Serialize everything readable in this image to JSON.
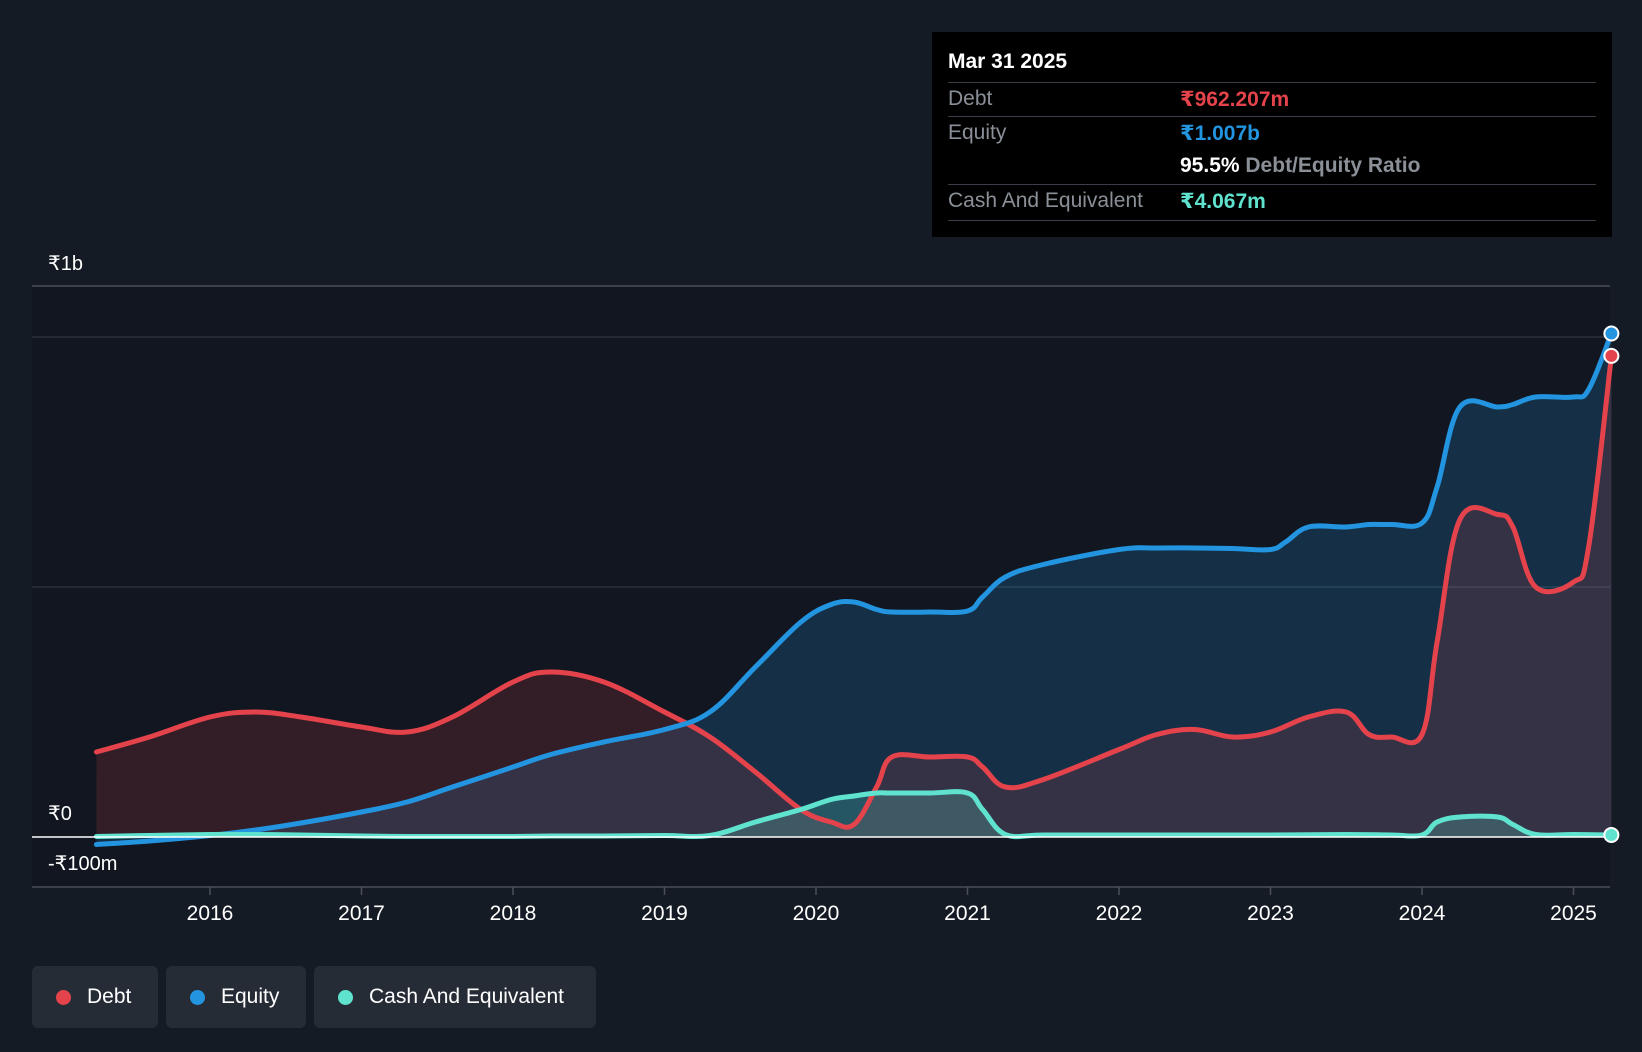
{
  "tooltip": {
    "date": "Mar 31 2025",
    "debt_label": "Debt",
    "debt_value": "₹962.207m",
    "equity_label": "Equity",
    "equity_value": "₹1.007b",
    "ratio_value": "95.5%",
    "ratio_label": "Debt/Equity Ratio",
    "cash_label": "Cash And Equivalent",
    "cash_value": "₹4.067m"
  },
  "legend": [
    {
      "label": "Debt",
      "color": "#e5434b"
    },
    {
      "label": "Equity",
      "color": "#2394df"
    },
    {
      "label": "Cash And Equivalent",
      "color": "#5fe3cf"
    }
  ],
  "chart_data": {
    "type": "area",
    "title": "",
    "xlabel": "",
    "ylabel": "",
    "y_top_label": "₹1b",
    "y_zero_label": "₹0",
    "y_bottom_label": "-₹100m",
    "ylim": [
      -100,
      1100
    ],
    "x_ticks": [
      "2016",
      "2017",
      "2018",
      "2019",
      "2020",
      "2021",
      "2022",
      "2023",
      "2024",
      "2025"
    ],
    "colors": {
      "debt": "#e5434b",
      "equity": "#2394df",
      "cash": "#5fe3cf"
    },
    "series": [
      {
        "name": "Debt",
        "key": "debt",
        "x": [
          2015.25,
          2015.6,
          2016.0,
          2016.3,
          2016.6,
          2017.0,
          2017.3,
          2017.6,
          2018.0,
          2018.25,
          2018.6,
          2019.0,
          2019.3,
          2019.6,
          2019.9,
          2020.1,
          2020.25,
          2020.4,
          2020.5,
          2020.75,
          2021.0,
          2021.1,
          2021.25,
          2021.5,
          2022.0,
          2022.25,
          2022.5,
          2022.75,
          2023.0,
          2023.25,
          2023.5,
          2023.65,
          2023.8,
          2024.0,
          2024.1,
          2024.25,
          2024.5,
          2024.6,
          2024.75,
          2025.0,
          2025.1,
          2025.25
        ],
        "values": [
          170,
          200,
          240,
          250,
          240,
          220,
          210,
          240,
          310,
          330,
          310,
          250,
          200,
          130,
          55,
          30,
          25,
          100,
          160,
          160,
          160,
          140,
          100,
          115,
          175,
          205,
          215,
          200,
          210,
          240,
          250,
          205,
          200,
          205,
          390,
          635,
          645,
          620,
          500,
          510,
          580,
          962.207
        ]
      },
      {
        "name": "Equity",
        "key": "equity",
        "x": [
          2015.25,
          2015.6,
          2016.0,
          2016.3,
          2016.6,
          2017.0,
          2017.3,
          2017.6,
          2018.0,
          2018.25,
          2018.6,
          2019.0,
          2019.3,
          2019.6,
          2019.9,
          2020.1,
          2020.25,
          2020.4,
          2020.5,
          2020.75,
          2021.0,
          2021.1,
          2021.25,
          2021.5,
          2022.0,
          2022.25,
          2022.5,
          2022.75,
          2023.0,
          2023.1,
          2023.25,
          2023.5,
          2023.65,
          2023.8,
          2024.0,
          2024.1,
          2024.25,
          2024.5,
          2024.6,
          2024.75,
          2025.0,
          2025.1,
          2025.25
        ],
        "values": [
          -15,
          -8,
          3,
          14,
          28,
          50,
          70,
          100,
          140,
          165,
          190,
          215,
          250,
          340,
          430,
          465,
          470,
          455,
          450,
          450,
          452,
          480,
          520,
          545,
          575,
          578,
          578,
          577,
          575,
          590,
          620,
          620,
          625,
          625,
          628,
          700,
          860,
          860,
          865,
          880,
          880,
          895,
          1007
        ]
      },
      {
        "name": "Cash And Equivalent",
        "key": "cash",
        "x": [
          2015.25,
          2015.6,
          2016.0,
          2016.3,
          2016.6,
          2017.0,
          2017.3,
          2017.6,
          2018.0,
          2018.25,
          2018.6,
          2019.0,
          2019.3,
          2019.6,
          2019.9,
          2020.1,
          2020.25,
          2020.4,
          2020.5,
          2020.75,
          2021.0,
          2021.1,
          2021.25,
          2021.5,
          2022.0,
          2022.5,
          2023.0,
          2023.5,
          2023.8,
          2024.0,
          2024.1,
          2024.25,
          2024.5,
          2024.6,
          2024.75,
          2025.0,
          2025.25
        ],
        "values": [
          1,
          3,
          5,
          5,
          4,
          2,
          1,
          1,
          1,
          2,
          2,
          3,
          3,
          30,
          55,
          75,
          82,
          88,
          88,
          88,
          88,
          55,
          5,
          4,
          4,
          4,
          4,
          5,
          4,
          4,
          30,
          40,
          40,
          25,
          5,
          5,
          4.067
        ]
      }
    ]
  }
}
